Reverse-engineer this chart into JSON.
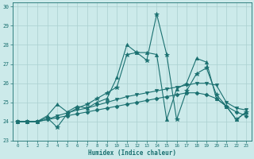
{
  "xlabel": "Humidex (Indice chaleur)",
  "xlim": [
    -0.5,
    23.5
  ],
  "ylim": [
    23,
    30.2
  ],
  "yticks": [
    23,
    24,
    25,
    26,
    27,
    28,
    29,
    30
  ],
  "xticks": [
    0,
    1,
    2,
    3,
    4,
    5,
    6,
    7,
    8,
    9,
    10,
    11,
    12,
    13,
    14,
    15,
    16,
    17,
    18,
    19,
    20,
    21,
    22,
    23
  ],
  "bg_color": "#cceaea",
  "line_color": "#1a7070",
  "grid_color": "#aad0d0",
  "series": [
    [
      24.0,
      24.0,
      24.0,
      24.2,
      23.7,
      24.4,
      24.7,
      24.9,
      25.2,
      25.5,
      25.8,
      27.5,
      27.6,
      27.2,
      29.6,
      27.5,
      24.1,
      25.6,
      26.5,
      26.8,
      25.4,
      24.8,
      24.1,
      24.5
    ],
    [
      24.0,
      24.0,
      24.0,
      24.3,
      24.9,
      24.5,
      24.8,
      24.7,
      25.0,
      25.2,
      26.3,
      28.0,
      27.6,
      27.6,
      27.5,
      24.1,
      25.7,
      26.0,
      27.3,
      27.1,
      25.2,
      24.8,
      24.1,
      24.5
    ],
    [
      24.0,
      24.0,
      24.0,
      24.1,
      24.3,
      24.45,
      24.6,
      24.7,
      24.85,
      25.0,
      25.15,
      25.3,
      25.4,
      25.5,
      25.6,
      25.7,
      25.8,
      25.9,
      26.0,
      26.0,
      25.9,
      25.0,
      24.7,
      24.6
    ],
    [
      24.0,
      24.0,
      24.0,
      24.1,
      24.2,
      24.3,
      24.4,
      24.5,
      24.6,
      24.7,
      24.8,
      24.9,
      25.0,
      25.1,
      25.2,
      25.3,
      25.4,
      25.5,
      25.5,
      25.4,
      25.2,
      24.8,
      24.5,
      24.3
    ]
  ],
  "markers": [
    "*",
    "^",
    "v",
    "D"
  ],
  "marker_sizes": [
    4,
    3,
    3,
    2.5
  ],
  "linewidths": [
    0.8,
    0.8,
    0.8,
    0.8
  ]
}
